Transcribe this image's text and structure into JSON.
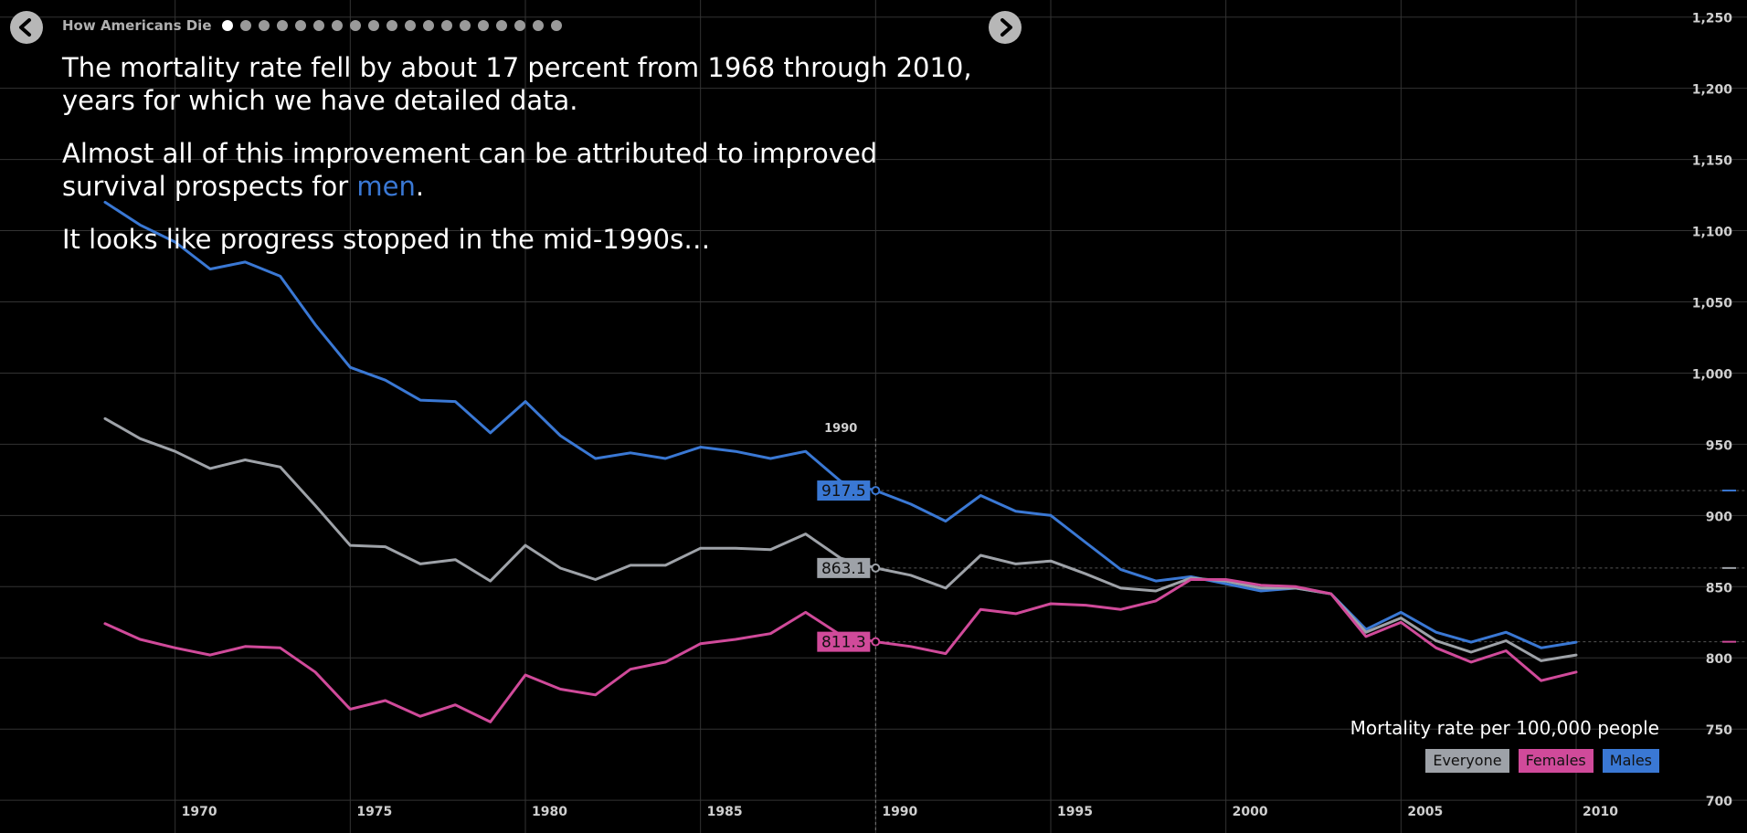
{
  "header": {
    "title": "How Americans Die",
    "slide_count": 19,
    "active_slide": 0
  },
  "narrative": {
    "p1": "The mortality rate fell by about 17 percent from 1968 through 2010, years for which we have detailed data.",
    "p2_before": "Almost all of this improvement can be attributed to improved survival prospects for ",
    "p2_highlight": "men",
    "p2_after": ".",
    "p3": "It looks like progress stopped in the mid-1990s…"
  },
  "legend": {
    "title": "Mortality rate per 100,000 people",
    "items": [
      {
        "key": "everyone",
        "label": "Everyone"
      },
      {
        "key": "females",
        "label": "Females"
      },
      {
        "key": "males",
        "label": "Males"
      }
    ]
  },
  "chart_data": {
    "type": "line",
    "x": [
      1968,
      1969,
      1970,
      1971,
      1972,
      1973,
      1974,
      1975,
      1976,
      1977,
      1978,
      1979,
      1980,
      1981,
      1982,
      1983,
      1984,
      1985,
      1986,
      1987,
      1988,
      1989,
      1990,
      1991,
      1992,
      1993,
      1994,
      1995,
      1996,
      1997,
      1998,
      1999,
      2000,
      2001,
      2002,
      2003,
      2004,
      2005,
      2006,
      2007,
      2008,
      2009,
      2010
    ],
    "series": [
      {
        "name": "Males",
        "key": "males",
        "color": "#3a78d4",
        "values": [
          1120,
          1104,
          1092,
          1073,
          1078,
          1068,
          1034,
          1004,
          995,
          981,
          980,
          958,
          980,
          956,
          940,
          944,
          940,
          948,
          945,
          940,
          945,
          924,
          917.5,
          908,
          896,
          914,
          903,
          900,
          881,
          862,
          854,
          857,
          852,
          847,
          849,
          845,
          820,
          832,
          818,
          811,
          818,
          807,
          811
        ]
      },
      {
        "name": "Everyone",
        "key": "everyone",
        "color": "#9ea2a8",
        "values": [
          968,
          954,
          945,
          933,
          939,
          934,
          907,
          879,
          878,
          866,
          869,
          854,
          879,
          863,
          855,
          865,
          865,
          877,
          877,
          876,
          887,
          870,
          863.1,
          858,
          849,
          872,
          866,
          868,
          859,
          849,
          847,
          856,
          854,
          849,
          849,
          845,
          818,
          828,
          812,
          804,
          812,
          798,
          802
        ]
      },
      {
        "name": "Females",
        "key": "females",
        "color": "#d04a9a",
        "values": [
          824,
          813,
          807,
          802,
          808,
          807,
          790,
          764,
          770,
          759,
          767,
          755,
          788,
          778,
          774,
          792,
          797,
          810,
          813,
          817,
          832,
          816,
          811.3,
          808,
          803,
          834,
          831,
          838,
          837,
          834,
          840,
          855,
          855,
          851,
          850,
          845,
          815,
          825,
          807,
          797,
          805,
          784,
          790
        ]
      }
    ],
    "xlim": [
      1965,
      2013
    ],
    "ylim": [
      677,
      1262
    ],
    "yticks": [
      700,
      750,
      800,
      850,
      900,
      950,
      1000,
      1050,
      1100,
      1150,
      1200,
      1250
    ],
    "xticks": [
      1970,
      1975,
      1980,
      1985,
      1990,
      1995,
      2000,
      2005,
      2010
    ],
    "grid": true,
    "focus": {
      "year": 1990,
      "year_label": "1990",
      "labels": [
        {
          "key": "males",
          "value": 917.5,
          "text": "917.5"
        },
        {
          "key": "everyone",
          "value": 863.1,
          "text": "863.1"
        },
        {
          "key": "females",
          "value": 811.3,
          "text": "811.3"
        }
      ]
    }
  }
}
